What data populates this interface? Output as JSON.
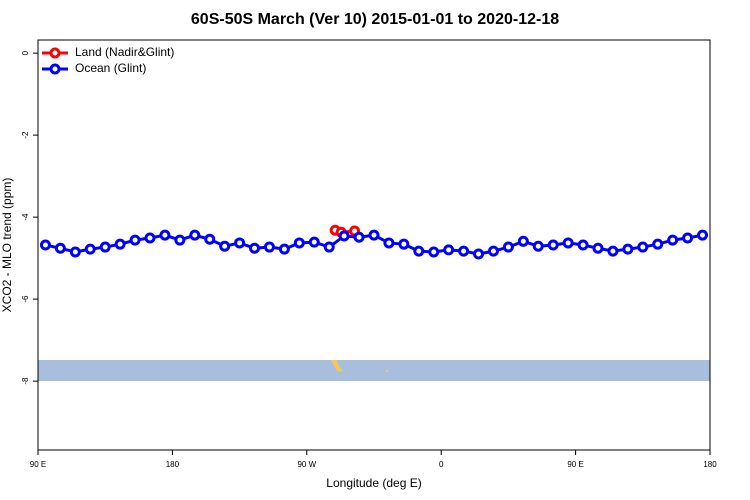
{
  "chart_data": {
    "type": "line",
    "title": "60S-50S March (Ver 10)   2015-01-01 to 2020-12-18",
    "xlabel": "Longitude (deg E)",
    "ylabel": "XCO2 - MLO trend (ppm)",
    "xlim": [
      90,
      540
    ],
    "ylim": [
      -9.68,
      0.32
    ],
    "xticks": [
      {
        "value": 90,
        "label": "90 E"
      },
      {
        "value": 180,
        "label": "180"
      },
      {
        "value": 270,
        "label": "90 W"
      },
      {
        "value": 360,
        "label": "0"
      },
      {
        "value": 450,
        "label": "90 E"
      },
      {
        "value": 540,
        "label": "180"
      }
    ],
    "yticks": [
      0,
      -2,
      -4,
      -6,
      -8
    ],
    "legend": "top-left",
    "series": [
      {
        "name": "Land (Nadir&Glint)",
        "color": "#ff0000",
        "x": [
          289,
          293,
          302
        ],
        "values": [
          -4.32,
          -4.37,
          -4.34
        ]
      },
      {
        "name": "Ocean (Glint)",
        "color": "#0000ff",
        "x": [
          95,
          105,
          115,
          125,
          135,
          145,
          155,
          165,
          175,
          185,
          195,
          205,
          215,
          225,
          235,
          245,
          255,
          265,
          275,
          285,
          295,
          305,
          315,
          325,
          335,
          345,
          355,
          365,
          375,
          385,
          395,
          405,
          415,
          425,
          435,
          445,
          455,
          465,
          475,
          485,
          495,
          505,
          515,
          525,
          535
        ],
        "values": [
          -4.68,
          -4.76,
          -4.85,
          -4.78,
          -4.73,
          -4.66,
          -4.56,
          -4.51,
          -4.44,
          -4.56,
          -4.44,
          -4.54,
          -4.71,
          -4.63,
          -4.76,
          -4.73,
          -4.78,
          -4.63,
          -4.61,
          -4.73,
          -4.46,
          -4.49,
          -4.44,
          -4.63,
          -4.66,
          -4.83,
          -4.85,
          -4.8,
          -4.83,
          -4.9,
          -4.83,
          -4.73,
          -4.59,
          -4.71,
          -4.68,
          -4.63,
          -4.68,
          -4.76,
          -4.83,
          -4.78,
          -4.73,
          -4.66,
          -4.56,
          -4.51,
          -4.44
        ]
      }
    ]
  }
}
